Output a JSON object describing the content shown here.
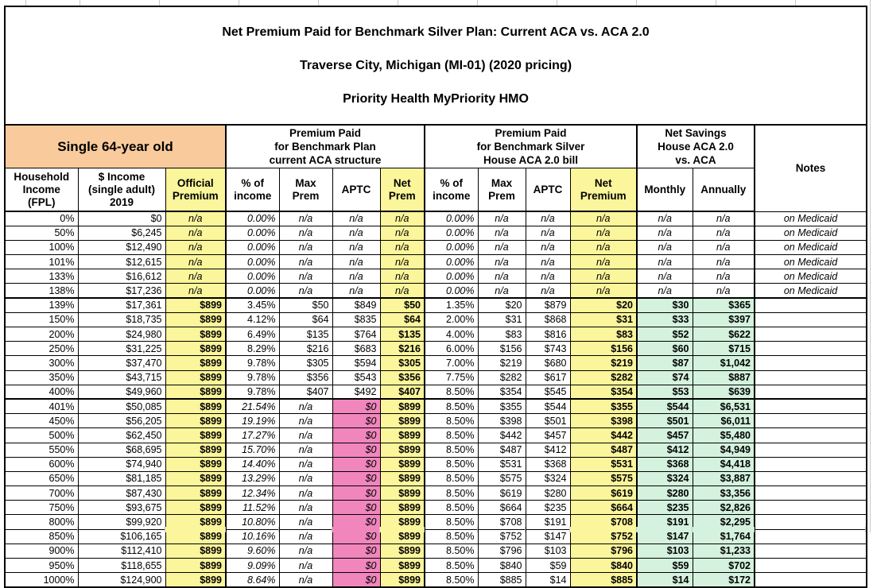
{
  "title": {
    "line1": "Net Premium Paid for Benchmark Silver Plan: Current ACA vs. ACA 2.0",
    "line2": "Traverse City, Michigan (MI-01) (2020 pricing)",
    "line3": "Priority Health MyPriority HMO"
  },
  "group_headers": {
    "subject": "Single 64-year old",
    "current_aca": "Premium Paid\nfor Benchmark Plan\ncurrent ACA structure",
    "house_aca2": "Premium Paid\nfor Benchmark Silver\nHouse ACA 2.0 bill",
    "net_savings": "Net Savings\nHouse ACA 2.0\nvs. ACA",
    "notes": "Notes"
  },
  "columns": [
    {
      "key": "fpl",
      "label": "Household\nIncome\n(FPL)"
    },
    {
      "key": "income",
      "label": "$ Income\n(single adult)\n2019"
    },
    {
      "key": "official",
      "label": "Official\nPremium"
    },
    {
      "key": "pct1",
      "label": "% of\nincome"
    },
    {
      "key": "max1",
      "label": "Max\nPrem"
    },
    {
      "key": "aptc1",
      "label": "APTC"
    },
    {
      "key": "net1",
      "label": "Net\nPrem"
    },
    {
      "key": "pct2",
      "label": "% of\nincome"
    },
    {
      "key": "max2",
      "label": "Max\nPrem"
    },
    {
      "key": "aptc2",
      "label": "APTC"
    },
    {
      "key": "net2",
      "label": "Net\nPremium"
    },
    {
      "key": "monthly",
      "label": "Monthly"
    },
    {
      "key": "annually",
      "label": "Annually"
    },
    {
      "key": "notes",
      "label": "Notes"
    }
  ],
  "colors": {
    "orange": "#F9CB9C",
    "yellow": "#FBF59B",
    "green": "#D4F2DD",
    "pink": "#F186BD"
  },
  "rows": [
    {
      "segment": "medicaid",
      "cells": [
        "0%",
        "$0",
        "n/a",
        "0.00%",
        "n/a",
        "n/a",
        "n/a",
        "0.00%",
        "n/a",
        "n/a",
        "n/a",
        "n/a",
        "n/a",
        "on Medicaid"
      ]
    },
    {
      "segment": "medicaid",
      "cells": [
        "50%",
        "$6,245",
        "n/a",
        "0.00%",
        "n/a",
        "n/a",
        "n/a",
        "0.00%",
        "n/a",
        "n/a",
        "n/a",
        "n/a",
        "n/a",
        "on Medicaid"
      ]
    },
    {
      "segment": "medicaid",
      "cells": [
        "100%",
        "$12,490",
        "n/a",
        "0.00%",
        "n/a",
        "n/a",
        "n/a",
        "0.00%",
        "n/a",
        "n/a",
        "n/a",
        "n/a",
        "n/a",
        "on Medicaid"
      ]
    },
    {
      "segment": "medicaid",
      "cells": [
        "101%",
        "$12,615",
        "n/a",
        "0.00%",
        "n/a",
        "n/a",
        "n/a",
        "0.00%",
        "n/a",
        "n/a",
        "n/a",
        "n/a",
        "n/a",
        "on Medicaid"
      ]
    },
    {
      "segment": "medicaid",
      "cells": [
        "133%",
        "$16,612",
        "n/a",
        "0.00%",
        "n/a",
        "n/a",
        "n/a",
        "0.00%",
        "n/a",
        "n/a",
        "n/a",
        "n/a",
        "n/a",
        "on Medicaid"
      ]
    },
    {
      "segment": "medicaid",
      "cells": [
        "138%",
        "$17,236",
        "n/a",
        "0.00%",
        "n/a",
        "n/a",
        "n/a",
        "0.00%",
        "n/a",
        "n/a",
        "n/a",
        "n/a",
        "n/a",
        "on Medicaid"
      ]
    },
    {
      "segment": "mid",
      "cells": [
        "139%",
        "$17,361",
        "$899",
        "3.45%",
        "$50",
        "$849",
        "$50",
        "1.35%",
        "$20",
        "$879",
        "$20",
        "$30",
        "$365",
        ""
      ]
    },
    {
      "segment": "mid",
      "cells": [
        "150%",
        "$18,735",
        "$899",
        "4.12%",
        "$64",
        "$835",
        "$64",
        "2.00%",
        "$31",
        "$868",
        "$31",
        "$33",
        "$397",
        ""
      ]
    },
    {
      "segment": "mid",
      "cells": [
        "200%",
        "$24,980",
        "$899",
        "6.49%",
        "$135",
        "$764",
        "$135",
        "4.00%",
        "$83",
        "$816",
        "$83",
        "$52",
        "$622",
        ""
      ]
    },
    {
      "segment": "mid",
      "cells": [
        "250%",
        "$31,225",
        "$899",
        "8.29%",
        "$216",
        "$683",
        "$216",
        "6.00%",
        "$156",
        "$743",
        "$156",
        "$60",
        "$715",
        ""
      ]
    },
    {
      "segment": "mid",
      "cells": [
        "300%",
        "$37,470",
        "$899",
        "9.78%",
        "$305",
        "$594",
        "$305",
        "7.00%",
        "$219",
        "$680",
        "$219",
        "$87",
        "$1,042",
        ""
      ]
    },
    {
      "segment": "mid",
      "cells": [
        "350%",
        "$43,715",
        "$899",
        "9.78%",
        "$356",
        "$543",
        "$356",
        "7.75%",
        "$282",
        "$617",
        "$282",
        "$74",
        "$887",
        ""
      ]
    },
    {
      "segment": "mid",
      "cells": [
        "400%",
        "$49,960",
        "$899",
        "9.78%",
        "$407",
        "$492",
        "$407",
        "8.50%",
        "$354",
        "$545",
        "$354",
        "$53",
        "$639",
        ""
      ]
    },
    {
      "segment": "high",
      "cells": [
        "401%",
        "$50,085",
        "$899",
        "21.54%",
        "n/a",
        "$0",
        "$899",
        "8.50%",
        "$355",
        "$544",
        "$355",
        "$544",
        "$6,531",
        ""
      ]
    },
    {
      "segment": "high",
      "cells": [
        "450%",
        "$56,205",
        "$899",
        "19.19%",
        "n/a",
        "$0",
        "$899",
        "8.50%",
        "$398",
        "$501",
        "$398",
        "$501",
        "$6,011",
        ""
      ]
    },
    {
      "segment": "high",
      "cells": [
        "500%",
        "$62,450",
        "$899",
        "17.27%",
        "n/a",
        "$0",
        "$899",
        "8.50%",
        "$442",
        "$457",
        "$442",
        "$457",
        "$5,480",
        ""
      ]
    },
    {
      "segment": "high",
      "cells": [
        "550%",
        "$68,695",
        "$899",
        "15.70%",
        "n/a",
        "$0",
        "$899",
        "8.50%",
        "$487",
        "$412",
        "$487",
        "$412",
        "$4,949",
        ""
      ]
    },
    {
      "segment": "high",
      "cells": [
        "600%",
        "$74,940",
        "$899",
        "14.40%",
        "n/a",
        "$0",
        "$899",
        "8.50%",
        "$531",
        "$368",
        "$531",
        "$368",
        "$4,418",
        ""
      ]
    },
    {
      "segment": "high",
      "cells": [
        "650%",
        "$81,185",
        "$899",
        "13.29%",
        "n/a",
        "$0",
        "$899",
        "8.50%",
        "$575",
        "$324",
        "$575",
        "$324",
        "$3,887",
        ""
      ]
    },
    {
      "segment": "high",
      "cells": [
        "700%",
        "$87,430",
        "$899",
        "12.34%",
        "n/a",
        "$0",
        "$899",
        "8.50%",
        "$619",
        "$280",
        "$619",
        "$280",
        "$3,356",
        ""
      ]
    },
    {
      "segment": "high",
      "cells": [
        "750%",
        "$93,675",
        "$899",
        "11.52%",
        "n/a",
        "$0",
        "$899",
        "8.50%",
        "$664",
        "$235",
        "$664",
        "$235",
        "$2,826",
        ""
      ]
    },
    {
      "segment": "high",
      "cells": [
        "800%",
        "$99,920",
        "$899",
        "10.80%",
        "n/a",
        "$0",
        "$899",
        "8.50%",
        "$708",
        "$191",
        "$708",
        "$191",
        "$2,295",
        ""
      ]
    },
    {
      "segment": "high",
      "cells": [
        "850%",
        "$106,165",
        "$899",
        "10.16%",
        "n/a",
        "$0",
        "$899",
        "8.50%",
        "$752",
        "$147",
        "$752",
        "$147",
        "$1,764",
        ""
      ]
    },
    {
      "segment": "high",
      "cells": [
        "900%",
        "$112,410",
        "$899",
        "9.60%",
        "n/a",
        "$0",
        "$899",
        "8.50%",
        "$796",
        "$103",
        "$796",
        "$103",
        "$1,233",
        ""
      ]
    },
    {
      "segment": "high",
      "cells": [
        "950%",
        "$118,655",
        "$899",
        "9.09%",
        "n/a",
        "$0",
        "$899",
        "8.50%",
        "$840",
        "$59",
        "$840",
        "$59",
        "$702",
        ""
      ]
    },
    {
      "segment": "high",
      "cells": [
        "1000%",
        "$124,900",
        "$899",
        "8.64%",
        "n/a",
        "$0",
        "$899",
        "8.50%",
        "$885",
        "$14",
        "$885",
        "$14",
        "$172",
        ""
      ]
    }
  ]
}
